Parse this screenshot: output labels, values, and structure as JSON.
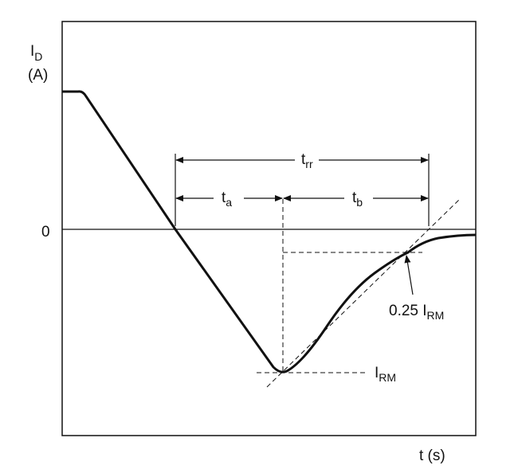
{
  "y_axis": {
    "symbol": "I",
    "subscript": "D",
    "unit": "(A)",
    "zero": "0"
  },
  "x_axis": {
    "label": "t (s)"
  },
  "intervals": {
    "trr": {
      "symbol": "t",
      "subscript": "rr"
    },
    "ta": {
      "symbol": "t",
      "subscript": "a"
    },
    "tb": {
      "symbol": "t",
      "subscript": "b"
    }
  },
  "annotations": {
    "irm": {
      "symbol": "I",
      "subscript": "RM"
    },
    "quarter_irm": {
      "prefix": "0.25 I",
      "subscript": "RM"
    }
  }
}
